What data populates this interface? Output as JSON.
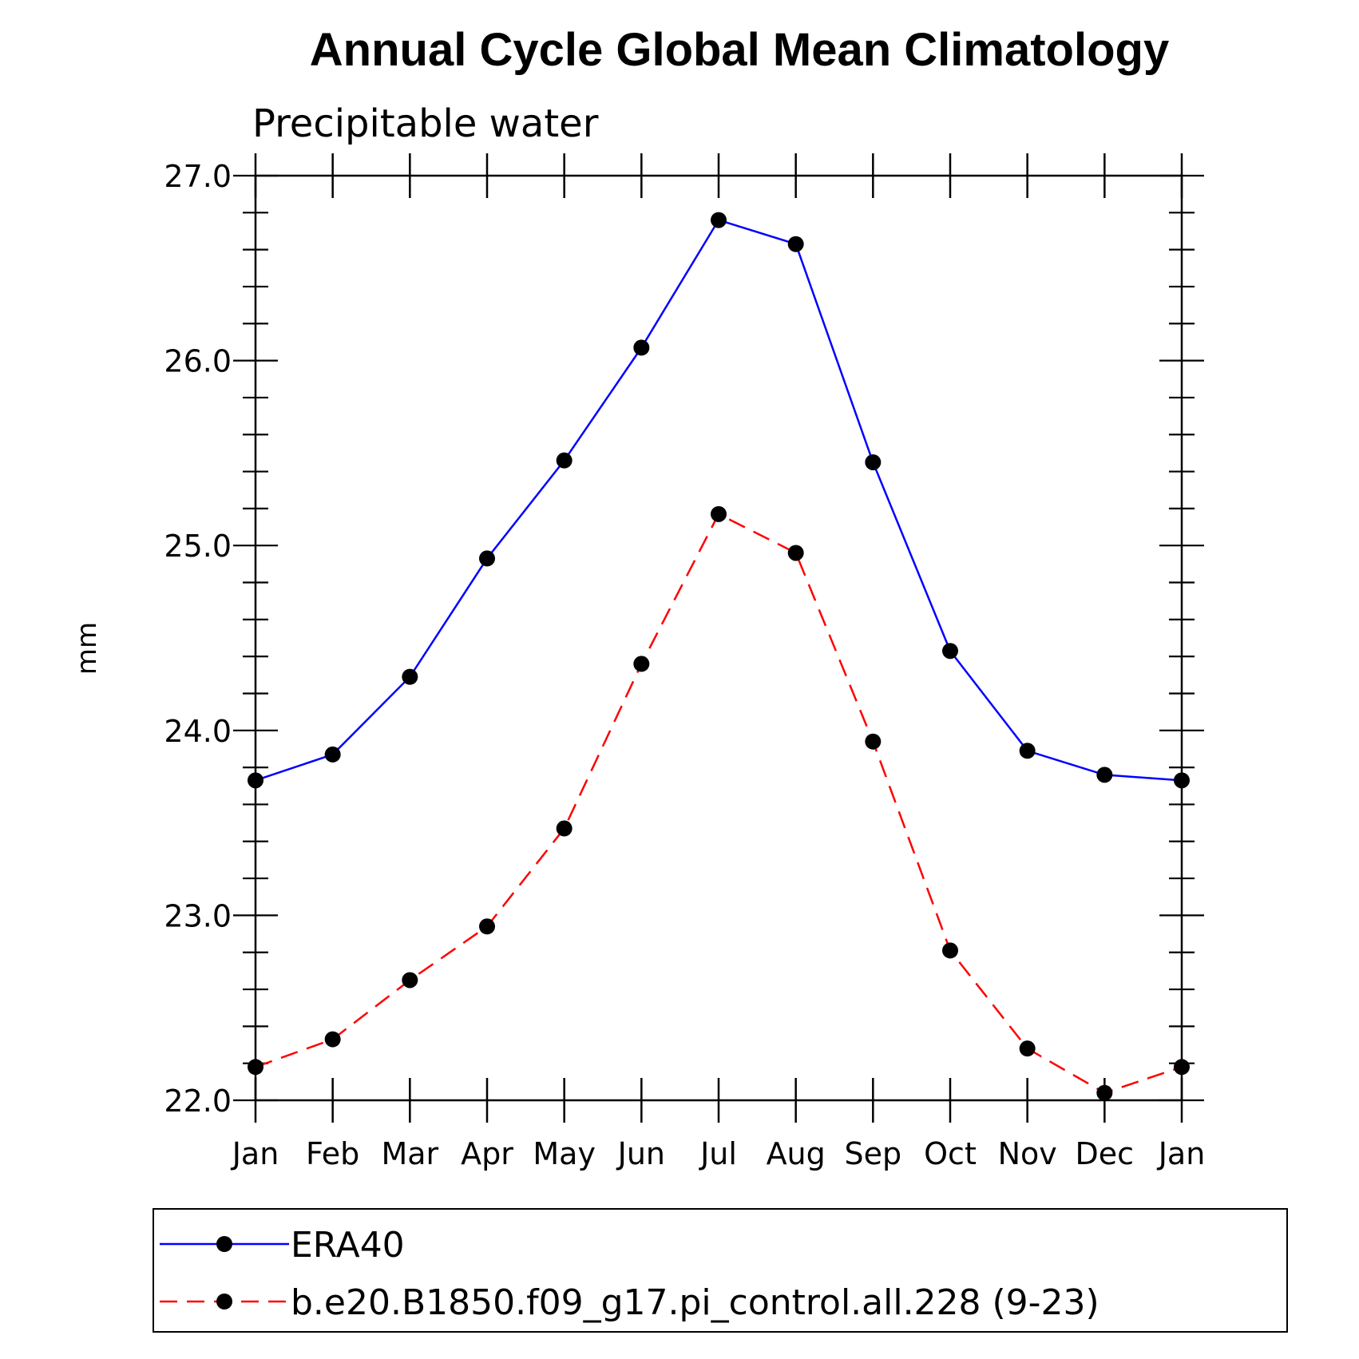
{
  "chart_data": {
    "type": "line",
    "title": "Annual Cycle Global Mean Climatology",
    "subtitle": "Precipitable water",
    "xlabel": "",
    "ylabel": "mm",
    "categories": [
      "Jan",
      "Feb",
      "Mar",
      "Apr",
      "May",
      "Jun",
      "Jul",
      "Aug",
      "Sep",
      "Oct",
      "Nov",
      "Dec",
      "Jan"
    ],
    "ylim": [
      22.0,
      27.0
    ],
    "yticks": [
      "22.0",
      "23.0",
      "24.0",
      "25.0",
      "26.0",
      "27.0"
    ],
    "series": [
      {
        "name": "ERA40",
        "color": "#0000ff",
        "dash": "solid",
        "values": [
          23.73,
          23.87,
          24.29,
          24.93,
          25.46,
          26.07,
          26.76,
          26.63,
          25.45,
          24.43,
          23.89,
          23.76,
          23.73
        ]
      },
      {
        "name": "b.e20.B1850.f09_g17.pi_control.all.228 (9-23)",
        "color": "#ff0000",
        "dash": "dashed",
        "values": [
          22.18,
          22.33,
          22.65,
          22.94,
          23.47,
          24.36,
          25.17,
          24.96,
          23.94,
          22.81,
          22.28,
          22.04,
          22.18
        ]
      }
    ],
    "legend": "bottom",
    "grid": false
  }
}
